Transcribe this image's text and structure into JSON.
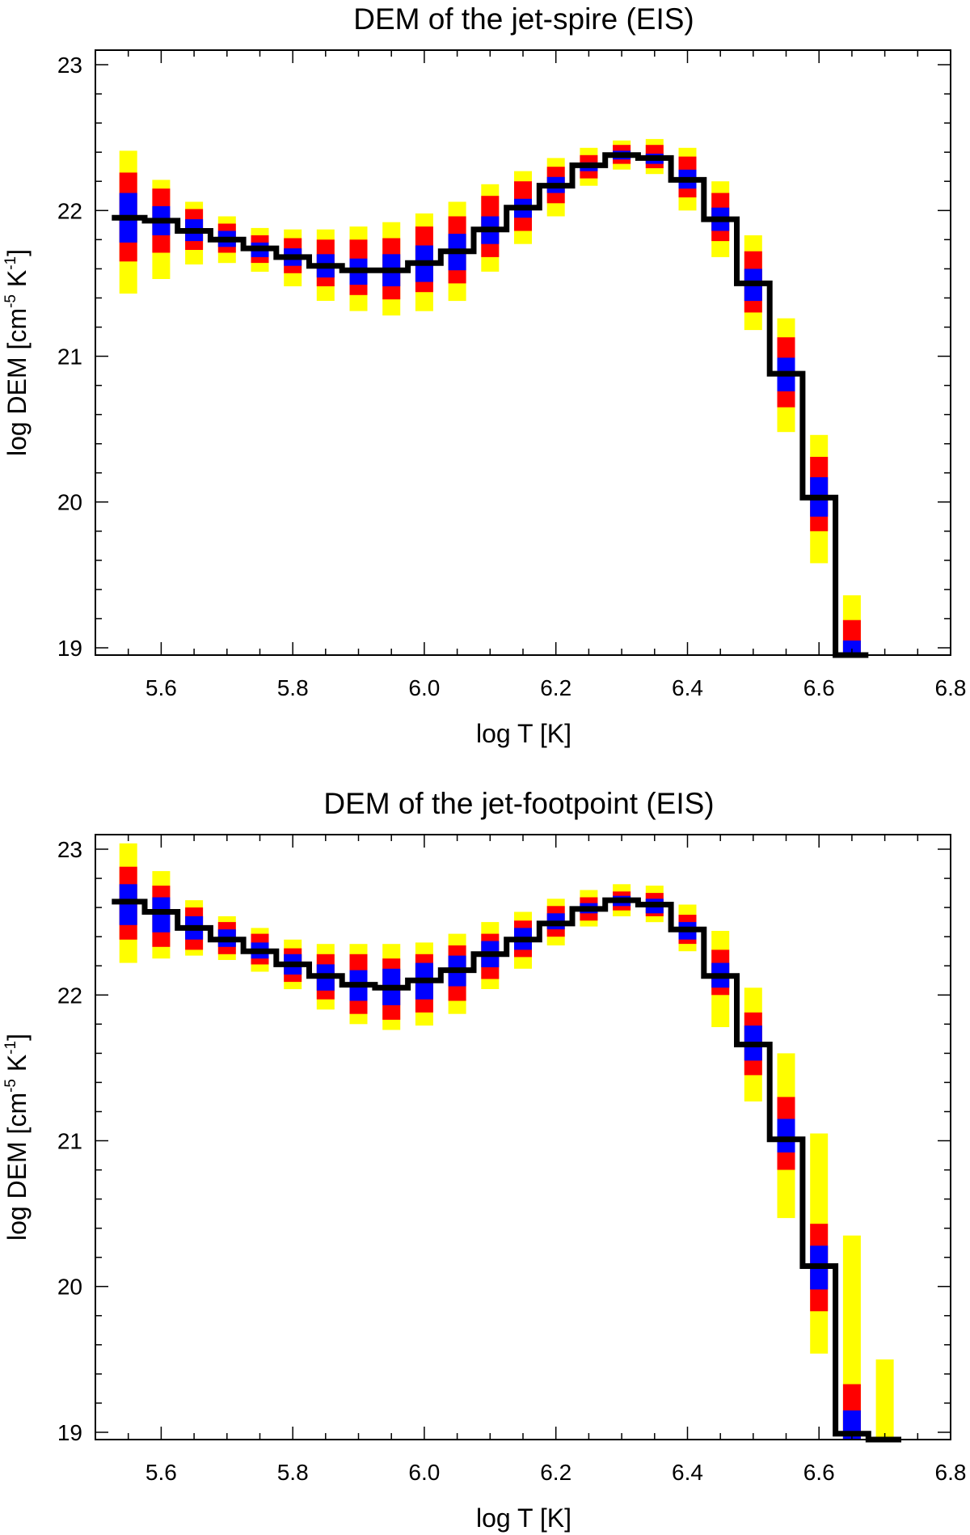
{
  "colors": {
    "band_outer": "#ffff00",
    "band_mid": "#ff0000",
    "band_inner": "#0000ff",
    "best_fit": "#000000",
    "axes": "#000000",
    "background": "#ffffff"
  },
  "chart_data": [
    {
      "id": "spire",
      "type": "step",
      "title": "DEM of the jet-spire (EIS)",
      "xlabel": "log T [K]",
      "ylabel": "log DEM [cm-5 K-1]",
      "ylabel_parts": {
        "main": "log DEM [cm",
        "exp1": "-5",
        "mid": " K",
        "exp2": "-1",
        "end": "]"
      },
      "xlim": [
        5.5,
        6.8
      ],
      "ylim": [
        18.95,
        23.1
      ],
      "xticks": [
        "5.6",
        "5.8",
        "6.0",
        "6.2",
        "6.4",
        "6.6",
        "6.8"
      ],
      "yticks": [
        "19",
        "20",
        "21",
        "22",
        "23"
      ],
      "x": [
        5.55,
        5.6,
        5.65,
        5.7,
        5.75,
        5.8,
        5.85,
        5.9,
        5.95,
        6.0,
        6.05,
        6.1,
        6.15,
        6.2,
        6.25,
        6.3,
        6.35,
        6.4,
        6.45,
        6.5,
        6.55,
        6.6,
        6.65
      ],
      "series": [
        {
          "name": "yellow-range-low",
          "values": [
            21.43,
            21.53,
            21.63,
            21.64,
            21.58,
            21.48,
            21.38,
            21.31,
            21.28,
            21.31,
            21.38,
            21.58,
            21.77,
            21.96,
            22.17,
            22.28,
            22.25,
            22.0,
            21.68,
            21.18,
            20.48,
            19.58,
            18.95
          ]
        },
        {
          "name": "yellow-range-high",
          "values": [
            22.41,
            22.21,
            22.06,
            21.96,
            21.88,
            21.87,
            21.87,
            21.89,
            21.92,
            21.98,
            22.06,
            22.18,
            22.27,
            22.36,
            22.43,
            22.48,
            22.49,
            22.43,
            22.2,
            21.83,
            21.26,
            20.46,
            19.36
          ]
        },
        {
          "name": "red-range-low",
          "values": [
            21.65,
            21.71,
            21.73,
            21.71,
            21.64,
            21.57,
            21.48,
            21.42,
            21.39,
            21.44,
            21.5,
            21.68,
            21.86,
            22.05,
            22.22,
            22.32,
            22.29,
            22.09,
            21.79,
            21.3,
            20.65,
            19.8,
            18.95
          ]
        },
        {
          "name": "red-range-high",
          "values": [
            22.26,
            22.15,
            22.01,
            21.91,
            21.83,
            21.81,
            21.8,
            21.8,
            21.81,
            21.89,
            21.96,
            22.1,
            22.2,
            22.3,
            22.38,
            22.45,
            22.45,
            22.37,
            22.12,
            21.72,
            21.13,
            20.31,
            19.19
          ]
        },
        {
          "name": "blue-range-low",
          "values": [
            21.78,
            21.83,
            21.79,
            21.75,
            21.68,
            21.62,
            21.54,
            21.49,
            21.48,
            21.51,
            21.59,
            21.77,
            21.95,
            22.12,
            22.27,
            22.35,
            22.32,
            22.15,
            21.86,
            21.38,
            20.76,
            19.9,
            18.95
          ]
        },
        {
          "name": "blue-range-high",
          "values": [
            22.12,
            22.03,
            21.94,
            21.86,
            21.78,
            21.74,
            21.7,
            21.67,
            21.7,
            21.76,
            21.84,
            21.96,
            22.08,
            22.23,
            22.33,
            22.41,
            22.39,
            22.28,
            22.02,
            21.6,
            20.99,
            20.17,
            19.05
          ]
        },
        {
          "name": "best-fit",
          "values": [
            21.95,
            21.93,
            21.86,
            21.8,
            21.74,
            21.68,
            21.62,
            21.59,
            21.59,
            21.64,
            21.72,
            21.87,
            22.02,
            22.17,
            22.31,
            22.38,
            22.36,
            22.21,
            21.94,
            21.5,
            20.88,
            20.03,
            18.95
          ]
        }
      ]
    },
    {
      "id": "footpoint",
      "type": "step",
      "title": "DEM of the jet-footpoint (EIS)",
      "xlabel": "log T [K]",
      "ylabel": "log DEM [cm-5 K-1]",
      "ylabel_parts": {
        "main": "log DEM [cm",
        "exp1": "-5",
        "mid": " K",
        "exp2": "-1",
        "end": "]"
      },
      "xlim": [
        5.5,
        6.8
      ],
      "ylim": [
        18.95,
        23.1
      ],
      "xticks": [
        "5.6",
        "5.8",
        "6.0",
        "6.2",
        "6.4",
        "6.6",
        "6.8"
      ],
      "yticks": [
        "19",
        "20",
        "21",
        "22",
        "23"
      ],
      "x": [
        5.55,
        5.6,
        5.65,
        5.7,
        5.75,
        5.8,
        5.85,
        5.9,
        5.95,
        6.0,
        6.05,
        6.1,
        6.15,
        6.2,
        6.25,
        6.3,
        6.35,
        6.4,
        6.45,
        6.5,
        6.55,
        6.6,
        6.65,
        6.7
      ],
      "series": [
        {
          "name": "yellow-range-low",
          "values": [
            22.22,
            22.25,
            22.27,
            22.24,
            22.16,
            22.04,
            21.9,
            21.8,
            21.76,
            21.79,
            21.87,
            22.04,
            22.18,
            22.34,
            22.47,
            22.54,
            22.5,
            22.3,
            21.78,
            21.27,
            20.47,
            19.54,
            18.95,
            18.95
          ]
        },
        {
          "name": "yellow-range-high",
          "values": [
            23.04,
            22.85,
            22.65,
            22.54,
            22.46,
            22.38,
            22.35,
            22.35,
            22.35,
            22.36,
            22.42,
            22.5,
            22.57,
            22.66,
            22.72,
            22.76,
            22.75,
            22.62,
            22.44,
            22.05,
            21.6,
            21.05,
            20.35,
            19.5
          ]
        },
        {
          "name": "red-range-low",
          "values": [
            22.38,
            22.33,
            22.31,
            22.28,
            22.21,
            22.09,
            21.97,
            21.87,
            21.83,
            21.88,
            21.96,
            22.11,
            22.26,
            22.4,
            22.51,
            22.58,
            22.54,
            22.35,
            22.0,
            21.45,
            20.8,
            19.83,
            18.95,
            18.95
          ]
        },
        {
          "name": "red-range-high",
          "values": [
            22.88,
            22.75,
            22.6,
            22.5,
            22.42,
            22.32,
            22.28,
            22.28,
            22.25,
            22.28,
            22.34,
            22.42,
            22.51,
            22.61,
            22.67,
            22.71,
            22.7,
            22.55,
            22.31,
            21.88,
            21.3,
            20.43,
            19.33,
            18.95
          ]
        },
        {
          "name": "blue-range-low",
          "values": [
            22.48,
            22.43,
            22.38,
            22.33,
            22.25,
            22.14,
            22.03,
            21.96,
            21.93,
            21.97,
            22.06,
            22.19,
            22.31,
            22.45,
            22.56,
            22.61,
            22.56,
            22.38,
            22.05,
            21.55,
            20.92,
            19.98,
            18.95,
            18.95
          ]
        },
        {
          "name": "blue-range-high",
          "values": [
            22.76,
            22.67,
            22.54,
            22.45,
            22.36,
            22.28,
            22.21,
            22.17,
            22.18,
            22.22,
            22.27,
            22.37,
            22.46,
            22.56,
            22.63,
            22.68,
            22.66,
            22.5,
            22.22,
            21.79,
            21.15,
            20.28,
            19.15,
            18.95
          ]
        },
        {
          "name": "best-fit",
          "values": [
            22.64,
            22.57,
            22.46,
            22.38,
            22.3,
            22.21,
            22.13,
            22.07,
            22.05,
            22.1,
            22.17,
            22.28,
            22.38,
            22.49,
            22.59,
            22.65,
            22.62,
            22.45,
            22.13,
            21.66,
            21.01,
            20.14,
            18.99,
            18.95
          ]
        }
      ]
    }
  ]
}
